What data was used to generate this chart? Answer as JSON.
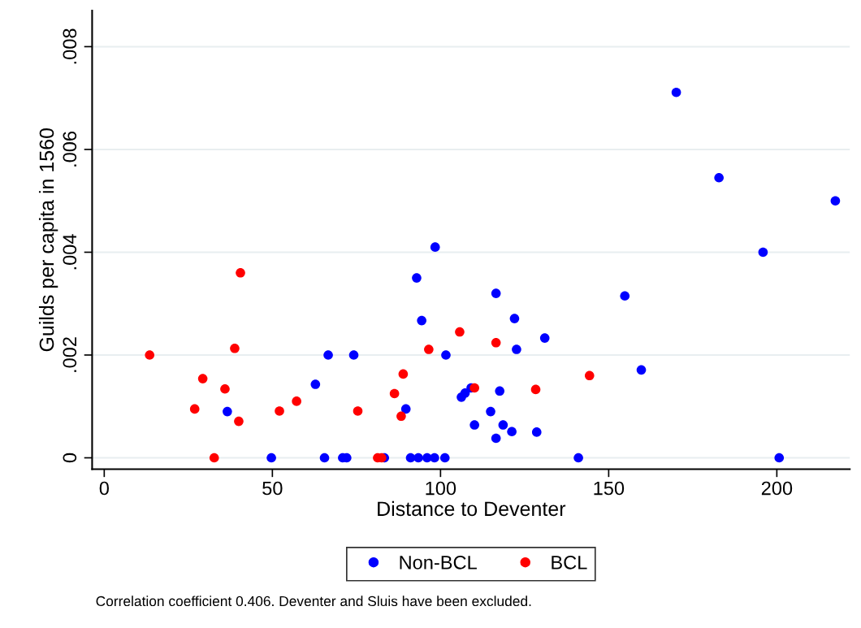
{
  "chart_data": {
    "type": "scatter",
    "xlabel": "Distance to Deventer",
    "ylabel": "Guilds per capita in 1560",
    "annotations": [
      "Correlation coefficient 0.406. Deventer and Sluis have been excluded."
    ],
    "xlim": [
      -3.6,
      221.7
    ],
    "ylim": [
      -0.00022,
      0.0087
    ],
    "xticks": [
      0,
      50,
      100,
      150,
      200
    ],
    "yticks": [
      {
        "value": 0,
        "label": "0"
      },
      {
        "value": 0.002,
        "label": ".002"
      },
      {
        "value": 0.004,
        "label": ".004"
      },
      {
        "value": 0.006,
        "label": ".006"
      },
      {
        "value": 0.008,
        "label": ".008"
      }
    ],
    "grid": "y",
    "legend": "bottom",
    "marker": "circle",
    "series": [
      {
        "name": "Non-BCL",
        "color": "#0000ff",
        "x": [
          36.6,
          49.7,
          62.8,
          66.6,
          74.2,
          65.5,
          70.9,
          72.1,
          83.3,
          89.7,
          92.9,
          94.4,
          101.6,
          91.1,
          93.4,
          96.0,
          98.2,
          101.3,
          98.4,
          116.5,
          122.0,
          131.0,
          122.6,
          117.6,
          106.2,
          107.3,
          109.1,
          114.9,
          110.1,
          118.6,
          121.2,
          116.5,
          128.6,
          141.0,
          170.1,
          182.8,
          217.4,
          195.9,
          154.8,
          159.7,
          200.7
        ],
        "values": [
          0.0009,
          0,
          0.00143,
          0.002,
          0.002,
          0,
          0,
          0,
          0,
          0.00095,
          0.0035,
          0.00267,
          0.002,
          0,
          0,
          0,
          0,
          0,
          0.0041,
          0.0032,
          0.00271,
          0.00233,
          0.00211,
          0.0013,
          0.00118,
          0.00126,
          0.00136,
          0.0009,
          0.00064,
          0.00064,
          0.00051,
          0.00038,
          0.0005,
          0,
          0.00711,
          0.00545,
          0.005,
          0.004,
          0.00315,
          0.00171,
          0
        ]
      },
      {
        "name": "BCL",
        "color": "#ff0000",
        "x": [
          13.5,
          40.5,
          38.8,
          29.3,
          35.9,
          26.9,
          40.0,
          32.7,
          52.1,
          57.2,
          75.4,
          86.3,
          88.9,
          88.3,
          96.5,
          81.3,
          82.5,
          105.7,
          116.5,
          110.1,
          128.3,
          144.3
        ],
        "values": [
          0.002,
          0.0036,
          0.00213,
          0.00154,
          0.00134,
          0.00095,
          0.00071,
          0,
          0.00091,
          0.0011,
          0.00091,
          0.00125,
          0.00163,
          0.00081,
          0.00211,
          0,
          0,
          0.00245,
          0.00224,
          0.00136,
          0.00133,
          0.0016
        ]
      }
    ]
  }
}
